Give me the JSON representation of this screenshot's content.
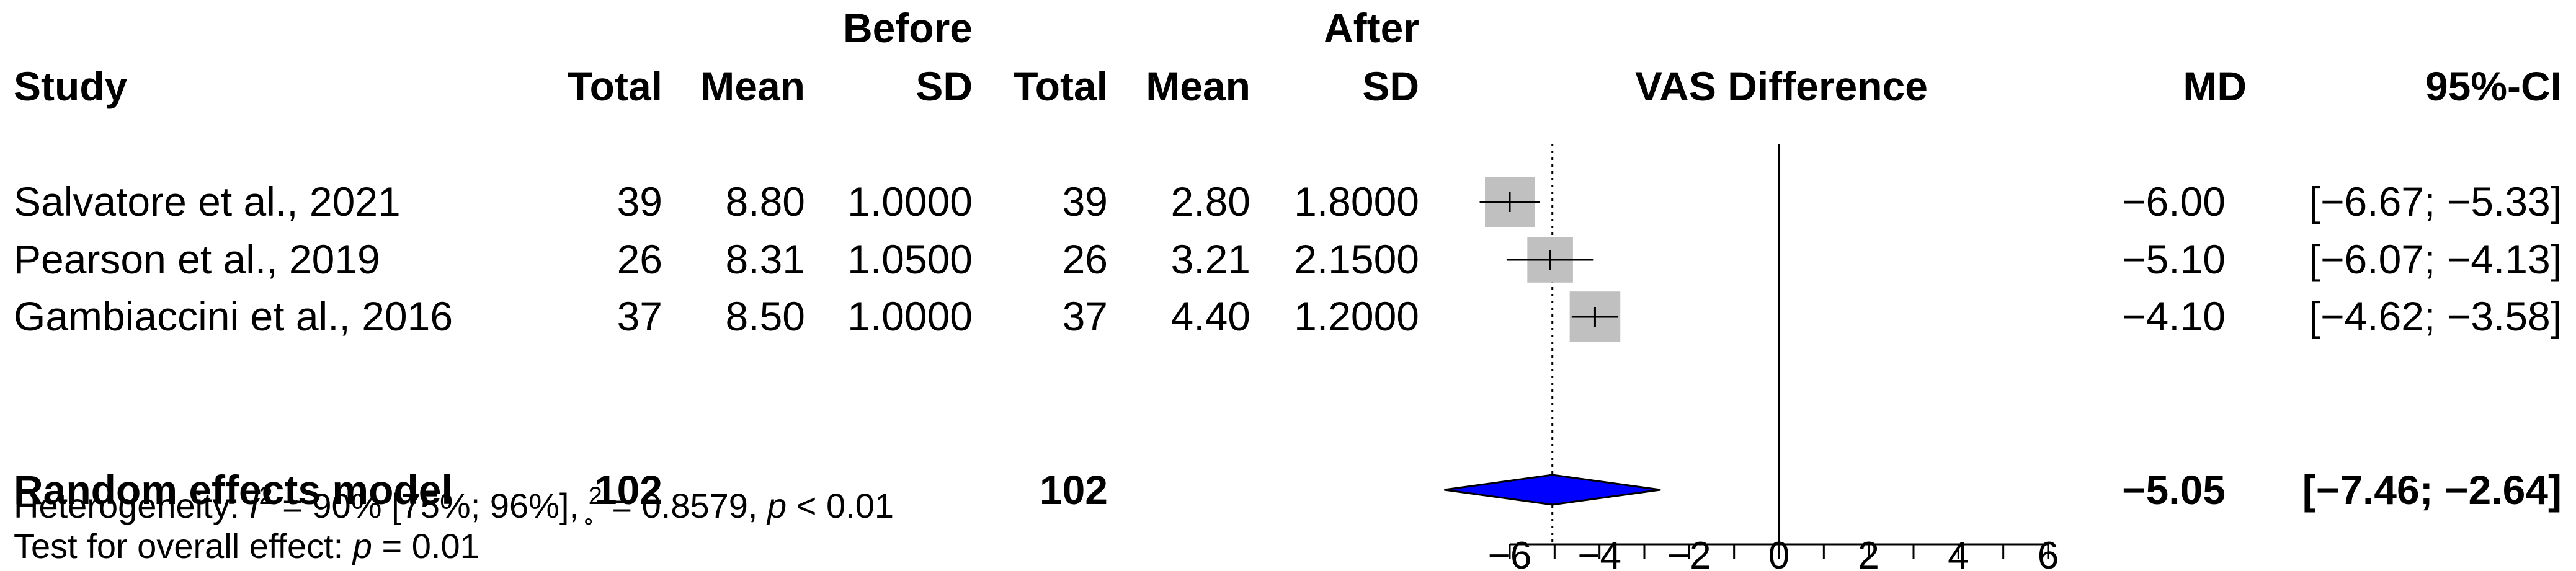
{
  "chart_data": {
    "type": "forest",
    "title": "",
    "group_headers": {
      "before": "Before",
      "after": "After"
    },
    "columns": {
      "study": "Study",
      "before_total": "Total",
      "before_mean": "Mean",
      "before_sd": "SD",
      "after_total": "Total",
      "after_mean": "Mean",
      "after_sd": "SD",
      "plot": "VAS Difference",
      "md": "MD",
      "ci": "95%-CI"
    },
    "studies": [
      {
        "name": "Salvatore et al., 2021",
        "before_total": "39",
        "before_mean": "8.80",
        "before_sd": "1.0000",
        "after_total": "39",
        "after_mean": "2.80",
        "after_sd": "1.8000",
        "md": -6.0,
        "lower": -6.67,
        "upper": -5.33,
        "md_text": "−6.00",
        "ci_text": "[−6.67; −5.33]",
        "weight": 1.0
      },
      {
        "name": "Pearson et al., 2019",
        "before_total": "26",
        "before_mean": "8.31",
        "before_sd": "1.0500",
        "after_total": "26",
        "after_mean": "3.21",
        "after_sd": "2.1500",
        "md": -5.1,
        "lower": -6.07,
        "upper": -4.13,
        "md_text": "−5.10",
        "ci_text": "[−6.07; −4.13]",
        "weight": 0.92
      },
      {
        "name": "Gambiaccini et al., 2016",
        "before_total": "37",
        "before_mean": "8.50",
        "before_sd": "1.0000",
        "after_total": "37",
        "after_mean": "4.40",
        "after_sd": "1.2000",
        "md": -4.1,
        "lower": -4.62,
        "upper": -3.58,
        "md_text": "−4.10",
        "ci_text": "[−4.62; −3.58]",
        "weight": 1.02
      }
    ],
    "pooled": {
      "name": "Random effects model",
      "before_total": "102",
      "after_total": "102",
      "md": -5.05,
      "lower": -7.46,
      "upper": -2.64,
      "md_text": "−5.05",
      "ci_text": "[−7.46; −2.64]",
      "color": "#0000ff"
    },
    "heterogeneity": {
      "prefix": "Heterogeneity: ",
      "i_symbol": "I",
      "sup": "2",
      "i2_text": " = 90% [75%; 96%], ",
      "tau_symbol": "̥",
      "tau2_text": " = 0.8579, ",
      "p_symbol": "p",
      "p_text": " < 0.01"
    },
    "overall_effect": {
      "prefix": "Test for overall effect:  ",
      "p_symbol": "p",
      "p_text": " = 0.01"
    },
    "xaxis": {
      "min": -6,
      "max": 6,
      "ticks": [
        -6,
        -4,
        -2,
        0,
        2,
        4,
        6
      ],
      "tick_labels": [
        "−6",
        "−4",
        "−2",
        "0",
        "2",
        "4",
        "6"
      ],
      "minor_step": 1
    },
    "reference_line": 0,
    "square_color": "#c0c0c0",
    "ci_line_color": "#000000"
  }
}
